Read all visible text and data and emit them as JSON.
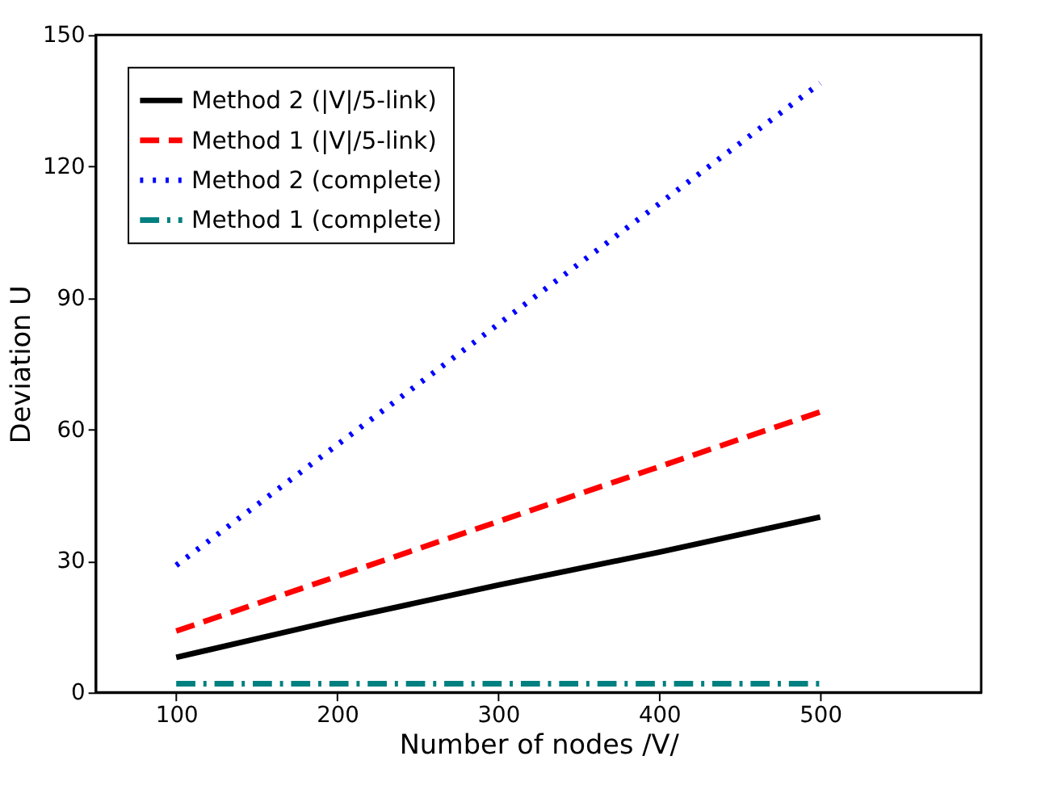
{
  "chart_data": {
    "type": "line",
    "xlabel": "Number of nodes /V/",
    "ylabel": "Deviation U",
    "x": [
      100,
      200,
      300,
      400,
      500
    ],
    "series": [
      {
        "name": "Method 2 (|V|/5-link)",
        "color": "#000000",
        "line_style": "solid",
        "values": [
          8,
          16.5,
          24.5,
          32,
          40
        ]
      },
      {
        "name": "Method 1 (|V|/5-link)",
        "color": "#ff0000",
        "line_style": "dashed",
        "values": [
          14,
          26.5,
          39,
          51.5,
          64
        ]
      },
      {
        "name": "Method 2 (complete)",
        "color": "#0000ff",
        "line_style": "dotted",
        "values": [
          29,
          56.5,
          84,
          111.5,
          139
        ]
      },
      {
        "name": "Method 1 (complete)",
        "color": "#008080",
        "line_style": "dashdot",
        "values": [
          2,
          2,
          2,
          2,
          2
        ]
      }
    ],
    "xlim": [
      50,
      600
    ],
    "xticks": [
      100,
      200,
      300,
      400,
      500
    ],
    "ylim": [
      0,
      150
    ],
    "yticks": [
      0,
      30,
      60,
      90,
      120,
      150
    ],
    "grid": false,
    "legend": "top left",
    "marker": "none"
  }
}
